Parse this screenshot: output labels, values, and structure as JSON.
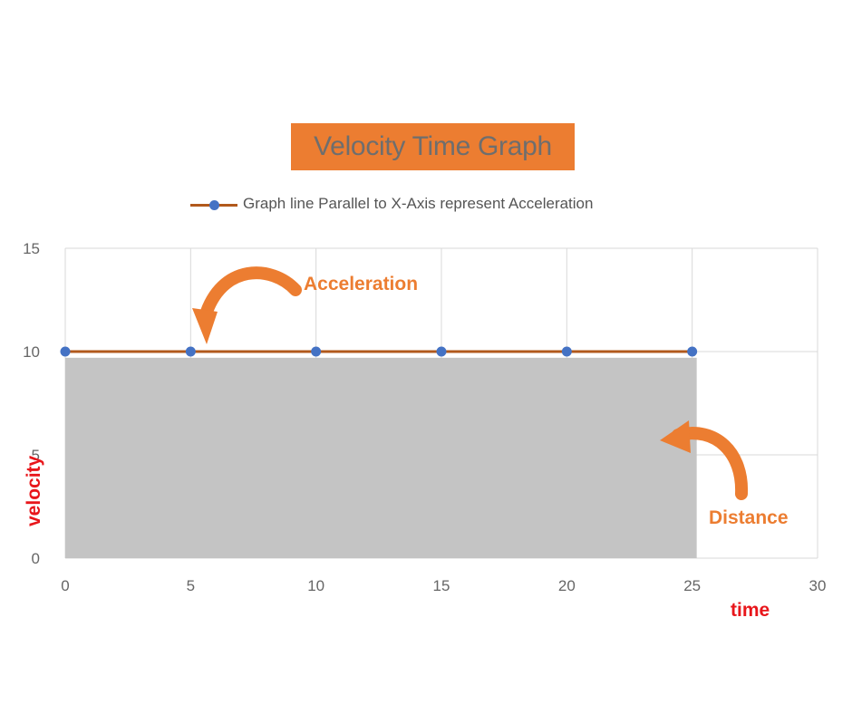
{
  "chart_data": {
    "type": "line",
    "title": "Velocity Time Graph",
    "xlabel": "time",
    "ylabel": "velocity",
    "xlim": [
      0,
      30
    ],
    "ylim": [
      0,
      15
    ],
    "x_ticks": [
      0,
      5,
      10,
      15,
      20,
      25,
      30
    ],
    "y_ticks": [
      0,
      5,
      10,
      15
    ],
    "grid": true,
    "legend_position": "top",
    "series": [
      {
        "name": "Graph line Parallel to X-Axis represent Acceleration",
        "x": [
          0,
          5,
          10,
          15,
          20,
          25
        ],
        "values": [
          10,
          10,
          10,
          10,
          10,
          10
        ],
        "line_color": "#b1591c",
        "marker_color": "#4472c4"
      }
    ],
    "shaded_area": {
      "x": [
        0,
        25
      ],
      "y": [
        0,
        9.7
      ],
      "color": "#c4c4c4"
    },
    "annotations": [
      {
        "label": "Acceleration",
        "color": "#ec7d31"
      },
      {
        "label": "Distance",
        "color": "#ec7d31"
      }
    ],
    "axis_label_color": "#e8161b",
    "title_background": "#ec7d31"
  }
}
